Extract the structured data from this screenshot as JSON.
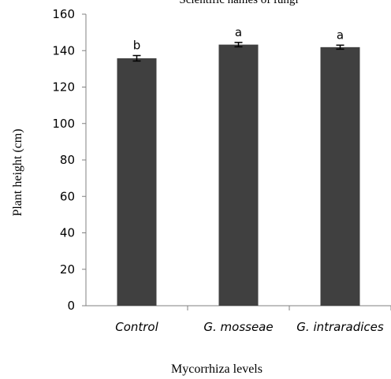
{
  "chart_data": {
    "type": "bar",
    "title": "Scientific names of fungi",
    "xlabel": "Mycorrhiza levels",
    "ylabel": "Plant height (cm)",
    "categories": [
      "Control",
      "G. mosseae",
      "G. intraradices"
    ],
    "values": [
      135.8,
      143.3,
      141.9
    ],
    "errors": [
      1.5,
      1.2,
      1.1
    ],
    "significance": [
      "b",
      "a",
      "a"
    ],
    "ylim": [
      0,
      160
    ],
    "yticks": [
      0,
      20,
      40,
      60,
      80,
      100,
      120,
      140,
      160
    ],
    "grid": false,
    "bar_color": "#404040"
  }
}
